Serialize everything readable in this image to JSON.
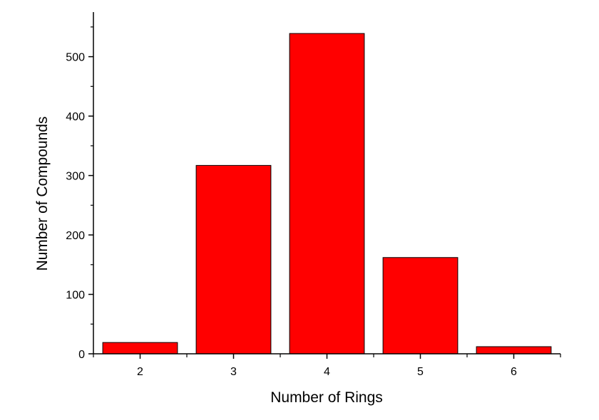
{
  "chart_data": {
    "type": "bar",
    "title": "",
    "xlabel": "Number of Rings",
    "ylabel": "Number of Compounds",
    "categories": [
      "2",
      "3",
      "4",
      "5",
      "6"
    ],
    "values": [
      19,
      317,
      539,
      162,
      12
    ],
    "ylim": [
      0,
      575
    ],
    "yticks": [
      0,
      100,
      200,
      300,
      400,
      500
    ],
    "yticks_labels": [
      "0",
      "100",
      "200",
      "300",
      "400",
      "500"
    ],
    "grid": false,
    "legend": "none",
    "bar_color": "#ff0000",
    "bar_edge_color": "#000000"
  }
}
